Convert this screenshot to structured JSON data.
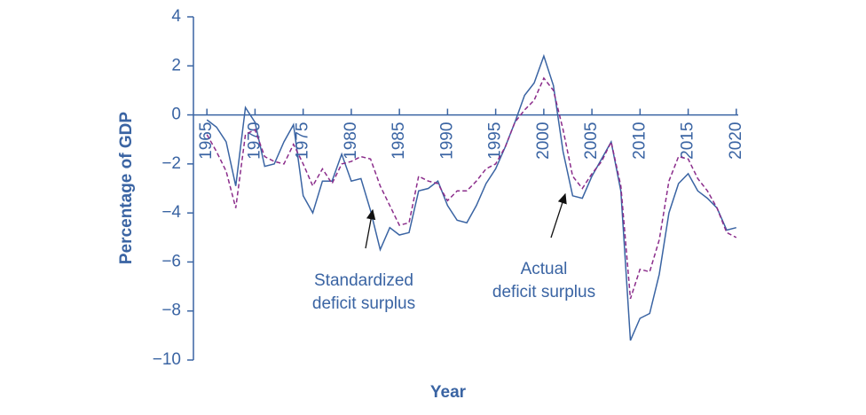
{
  "chart_data": {
    "type": "line",
    "y_label": "Percentage of GDP",
    "x_label": "Year",
    "x": [
      1965,
      1966,
      1967,
      1968,
      1969,
      1970,
      1971,
      1972,
      1973,
      1974,
      1975,
      1976,
      1977,
      1978,
      1979,
      1980,
      1981,
      1982,
      1983,
      1984,
      1985,
      1986,
      1987,
      1988,
      1989,
      1990,
      1991,
      1992,
      1993,
      1994,
      1995,
      1996,
      1997,
      1998,
      1999,
      2000,
      2001,
      2002,
      2003,
      2004,
      2005,
      2006,
      2007,
      2008,
      2009,
      2010,
      2011,
      2012,
      2013,
      2014,
      2015,
      2016,
      2017,
      2018,
      2019,
      2020
    ],
    "series": [
      {
        "name": "Actual deficit surplus",
        "color": "#3a64a3",
        "dash": false,
        "values": [
          -0.2,
          -0.5,
          -1.1,
          -2.9,
          0.3,
          -0.3,
          -2.1,
          -2.0,
          -1.1,
          -0.4,
          -3.3,
          -4.0,
          -2.7,
          -2.7,
          -1.6,
          -2.7,
          -2.6,
          -3.9,
          -5.5,
          -4.6,
          -4.9,
          -4.8,
          -3.1,
          -3.0,
          -2.7,
          -3.7,
          -4.3,
          -4.4,
          -3.7,
          -2.8,
          -2.2,
          -1.3,
          -0.3,
          0.8,
          1.3,
          2.4,
          1.2,
          -1.5,
          -3.3,
          -3.4,
          -2.5,
          -1.8,
          -1.1,
          -3.1,
          -9.2,
          -8.3,
          -8.1,
          -6.5,
          -4.0,
          -2.8,
          -2.4,
          -3.1,
          -3.4,
          -3.8,
          -4.7,
          -4.6
        ]
      },
      {
        "name": "Standardized deficit surplus",
        "color": "#8b2d8b",
        "dash": true,
        "values": [
          -0.8,
          -1.5,
          -2.3,
          -3.8,
          -0.8,
          -0.6,
          -1.7,
          -1.9,
          -2.0,
          -1.2,
          -2.0,
          -2.9,
          -2.2,
          -2.8,
          -2.0,
          -1.9,
          -1.7,
          -1.8,
          -2.9,
          -3.7,
          -4.5,
          -4.4,
          -2.5,
          -2.7,
          -2.8,
          -3.5,
          -3.1,
          -3.1,
          -2.7,
          -2.2,
          -2.0,
          -1.3,
          -0.3,
          0.2,
          0.6,
          1.5,
          1.0,
          -0.6,
          -2.5,
          -3.0,
          -2.4,
          -1.9,
          -1.1,
          -2.9,
          -7.5,
          -6.3,
          -6.4,
          -5.1,
          -2.7,
          -1.7,
          -1.8,
          -2.6,
          -3.1,
          -3.8,
          -4.8,
          -5.0
        ]
      }
    ],
    "annotations": [
      {
        "lines": [
          "Standardized",
          "deficit surplus"
        ]
      },
      {
        "lines": [
          "Actual",
          "deficit surplus"
        ]
      }
    ],
    "xlim": [
      1963.6,
      2020.2
    ],
    "ylim": [
      -10,
      4
    ],
    "xticks": [
      1965,
      1970,
      1975,
      1980,
      1985,
      1990,
      1995,
      2000,
      2005,
      2010,
      2015,
      2020
    ],
    "yticks": [
      {
        "value": -10,
        "label": "−10"
      },
      {
        "value": -8,
        "label": "−8"
      },
      {
        "value": -6,
        "label": "−6"
      },
      {
        "value": -4,
        "label": "−4"
      },
      {
        "value": -2,
        "label": "−2"
      },
      0,
      2,
      4
    ]
  }
}
